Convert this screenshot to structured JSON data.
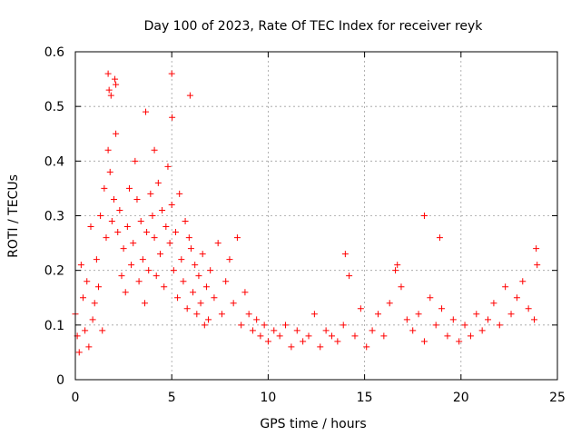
{
  "chart_data": {
    "type": "scatter",
    "title": "Day 100 of 2023, Rate Of TEC Index for receiver reyk",
    "xlabel": "GPS time / hours",
    "ylabel": "ROTI / TECUs",
    "xlim": [
      0,
      25
    ],
    "ylim": [
      0,
      0.6
    ],
    "x_ticks": [
      0,
      5,
      10,
      15,
      20,
      25
    ],
    "x_tick_labels": [
      "0",
      "5",
      "10",
      "15",
      "20",
      "25"
    ],
    "y_ticks": [
      0,
      0.1,
      0.2,
      0.3,
      0.4,
      0.5,
      0.6
    ],
    "y_tick_labels": [
      "0",
      "0.1",
      "0.2",
      "0.3",
      "0.4",
      "0.5",
      "0.6"
    ],
    "grid": true,
    "marker": "+",
    "color": "#ff0000",
    "series": [
      {
        "name": "ROTI",
        "x": [
          0.0,
          0.1,
          0.2,
          0.3,
          0.4,
          0.5,
          0.6,
          0.7,
          0.8,
          0.9,
          1.0,
          1.1,
          1.2,
          1.3,
          1.4,
          1.5,
          1.6,
          1.7,
          1.8,
          1.9,
          2.0,
          2.1,
          2.2,
          2.3,
          2.4,
          2.5,
          2.6,
          2.7,
          2.8,
          2.9,
          3.0,
          3.1,
          3.2,
          3.3,
          3.4,
          3.5,
          3.6,
          3.7,
          3.8,
          3.9,
          4.0,
          4.1,
          4.2,
          4.3,
          4.4,
          4.5,
          4.6,
          4.7,
          4.8,
          4.9,
          5.0,
          5.1,
          5.2,
          5.3,
          5.4,
          5.5,
          5.6,
          5.7,
          5.8,
          5.9,
          6.0,
          6.1,
          6.2,
          6.3,
          6.4,
          6.5,
          6.6,
          6.7,
          6.8,
          6.9,
          7.0,
          7.2,
          7.4,
          7.6,
          7.8,
          8.0,
          8.2,
          8.4,
          8.6,
          8.8,
          9.0,
          9.2,
          9.4,
          9.6,
          9.8,
          10.0,
          10.3,
          10.6,
          10.9,
          11.2,
          11.5,
          11.8,
          12.1,
          12.4,
          12.7,
          13.0,
          13.3,
          13.6,
          13.9,
          14.2,
          14.5,
          14.8,
          15.1,
          15.4,
          15.7,
          16.0,
          16.3,
          16.6,
          16.9,
          17.2,
          17.5,
          17.8,
          18.1,
          18.4,
          18.7,
          19.0,
          19.3,
          19.6,
          19.9,
          20.2,
          20.5,
          20.8,
          21.1,
          21.4,
          21.7,
          22.0,
          22.3,
          22.6,
          22.9,
          23.2,
          23.5,
          23.8,
          23.95,
          1.7,
          1.75,
          1.85,
          2.05,
          2.1,
          5.0,
          5.02,
          5.95,
          3.65,
          4.1,
          18.1,
          18.9,
          23.9,
          14.0,
          16.7
        ],
        "y": [
          0.12,
          0.08,
          0.05,
          0.21,
          0.15,
          0.09,
          0.18,
          0.06,
          0.28,
          0.11,
          0.14,
          0.22,
          0.17,
          0.3,
          0.09,
          0.35,
          0.26,
          0.42,
          0.38,
          0.29,
          0.33,
          0.45,
          0.27,
          0.31,
          0.19,
          0.24,
          0.16,
          0.28,
          0.35,
          0.21,
          0.25,
          0.4,
          0.33,
          0.18,
          0.29,
          0.22,
          0.14,
          0.27,
          0.2,
          0.34,
          0.3,
          0.26,
          0.19,
          0.36,
          0.23,
          0.31,
          0.17,
          0.28,
          0.39,
          0.25,
          0.32,
          0.2,
          0.27,
          0.15,
          0.34,
          0.22,
          0.18,
          0.29,
          0.13,
          0.26,
          0.24,
          0.16,
          0.21,
          0.12,
          0.19,
          0.14,
          0.23,
          0.1,
          0.17,
          0.11,
          0.2,
          0.15,
          0.25,
          0.12,
          0.18,
          0.22,
          0.14,
          0.26,
          0.1,
          0.16,
          0.12,
          0.09,
          0.11,
          0.08,
          0.1,
          0.07,
          0.09,
          0.08,
          0.1,
          0.06,
          0.09,
          0.07,
          0.08,
          0.12,
          0.06,
          0.09,
          0.08,
          0.07,
          0.1,
          0.19,
          0.08,
          0.13,
          0.06,
          0.09,
          0.12,
          0.08,
          0.14,
          0.2,
          0.17,
          0.11,
          0.09,
          0.12,
          0.07,
          0.15,
          0.1,
          0.13,
          0.08,
          0.11,
          0.07,
          0.1,
          0.08,
          0.12,
          0.09,
          0.11,
          0.14,
          0.1,
          0.17,
          0.12,
          0.15,
          0.18,
          0.13,
          0.11,
          0.21,
          0.56,
          0.53,
          0.52,
          0.55,
          0.54,
          0.56,
          0.48,
          0.52,
          0.49,
          0.42,
          0.3,
          0.26,
          0.24,
          0.23,
          0.21
        ]
      }
    ]
  }
}
